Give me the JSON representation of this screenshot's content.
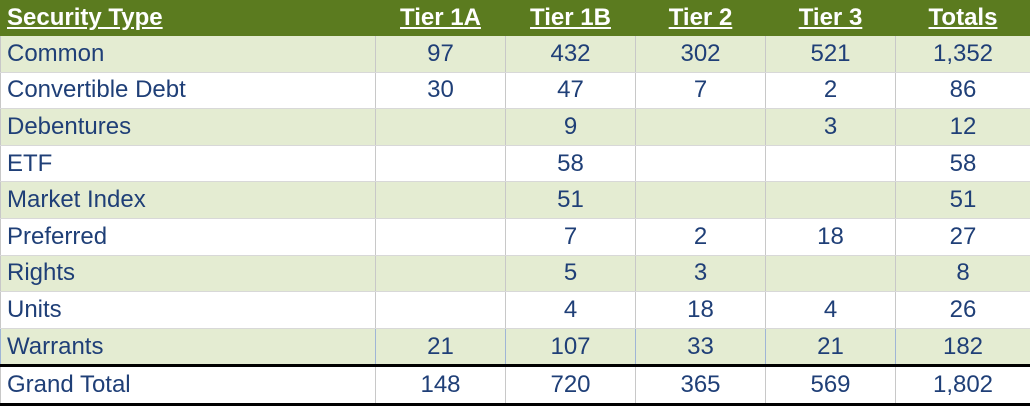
{
  "table": {
    "header": [
      "Security Type",
      "Tier 1A",
      "Tier 1B",
      "Tier 2",
      "Tier 3",
      "Totals"
    ],
    "rows": [
      [
        "Common",
        97,
        432,
        302,
        521,
        "1,352"
      ],
      [
        "Convertible Debt",
        30,
        47,
        7,
        2,
        86
      ],
      [
        "Debentures",
        null,
        9,
        null,
        3,
        12
      ],
      [
        "ETF",
        null,
        58,
        null,
        null,
        58
      ],
      [
        "Market Index",
        null,
        51,
        null,
        null,
        51
      ],
      [
        "Preferred",
        null,
        7,
        2,
        18,
        27
      ],
      [
        "Rights",
        null,
        5,
        3,
        null,
        8
      ],
      [
        "Units",
        null,
        4,
        18,
        4,
        26
      ],
      [
        "Warrants",
        21,
        107,
        33,
        21,
        182
      ]
    ],
    "total": [
      "Grand Total",
      148,
      720,
      365,
      569,
      "1,802"
    ]
  }
}
